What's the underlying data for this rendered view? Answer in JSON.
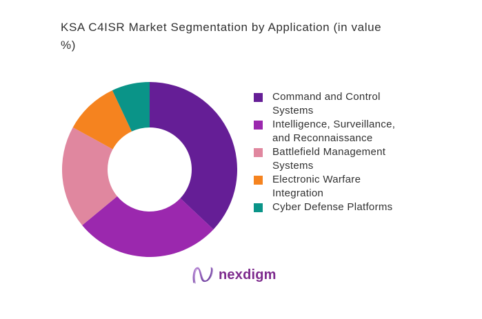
{
  "page": {
    "background": "#ffffff"
  },
  "title_lines": [
    "KSA C4ISR Market Segmentation by Application (in value",
    "%)"
  ],
  "chart_data": {
    "type": "pie",
    "subtype": "donut",
    "title": "KSA C4ISR Market Segmentation by Application (in value %)",
    "unit": "value %",
    "categories": [
      "Command and Control Systems",
      "Intelligence, Surveillance, and Reconnaissance",
      "Battlefield Management Systems",
      "Electronic Warfare Integration",
      "Cyber Defense Platforms"
    ],
    "values": [
      37,
      27,
      19,
      10,
      7
    ],
    "colors": [
      "#651E96",
      "#9B28AE",
      "#E0879F",
      "#F5831F",
      "#0A9488"
    ],
    "start_angle_deg": 0,
    "direction": "clockwise",
    "inner_radius_ratio": 0.48,
    "legend_position": "right",
    "data_labels_shown": false
  },
  "legend": {
    "items": [
      {
        "label_lines": [
          "Command and Control",
          "Systems"
        ],
        "color": "#651E96"
      },
      {
        "label_lines": [
          "Intelligence, Surveillance,",
          "and Reconnaissance"
        ],
        "color": "#9B28AE"
      },
      {
        "label_lines": [
          "Battlefield Management",
          "Systems"
        ],
        "color": "#E0879F"
      },
      {
        "label_lines": [
          "Electronic Warfare",
          "Integration"
        ],
        "color": "#F5831F"
      },
      {
        "label_lines": [
          "Cyber Defense Platforms"
        ],
        "color": "#0A9488"
      }
    ]
  },
  "logo": {
    "wordmark": "nexdigm",
    "color": "#7D2A8D"
  }
}
